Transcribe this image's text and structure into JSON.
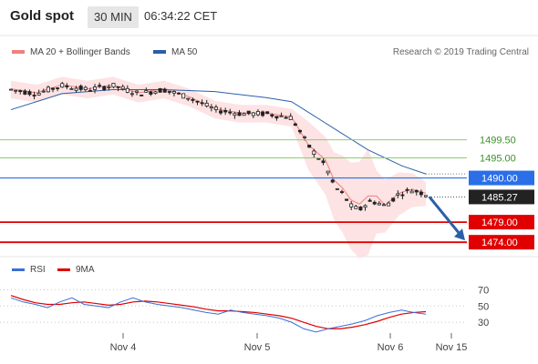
{
  "header": {
    "title": "Gold spot",
    "timeframe": "30 MIN",
    "clock": "06:34:22 CET"
  },
  "legend": {
    "items": [
      {
        "label": "MA 20 + Bollinger Bands",
        "color": "#f08080"
      },
      {
        "label": "MA 50",
        "color": "#2a5fa8"
      }
    ],
    "credit": "Research © 2019 Trading Central"
  },
  "colors": {
    "candle": "#222222",
    "bb_fill": "#fde0e0",
    "ma20": "#f08080",
    "ma50": "#2a5fa8",
    "support": "#e00000",
    "resistance": "#8fce6b",
    "pivot": "#2a6fe8",
    "arrow": "#2a5fa8"
  },
  "chart_data": [
    {
      "type": "line",
      "title": "",
      "xlabel": "",
      "ylabel": "",
      "x_ticks": [
        "Nov 4",
        "Nov 5",
        "Nov 6",
        "Nov 15"
      ],
      "ylim": [
        1472,
        1518
      ],
      "price_series": {
        "name": "Gold spot",
        "points_x": [
          0,
          15,
          30,
          45,
          60,
          75,
          90,
          105,
          120,
          135,
          150,
          165,
          175,
          185,
          190,
          195,
          200,
          205,
          210,
          215,
          220,
          228,
          236,
          244
        ],
        "values": [
          1512,
          1511,
          1513,
          1512,
          1513,
          1511,
          1512,
          1510,
          1507,
          1506,
          1506,
          1505,
          1498,
          1493,
          1488,
          1486,
          1483,
          1482,
          1484,
          1484,
          1483,
          1486,
          1487,
          1486
        ]
      },
      "ma50": {
        "name": "MA 50",
        "points_x": [
          0,
          30,
          60,
          90,
          120,
          150,
          165,
          180,
          195,
          210,
          230,
          244
        ],
        "values": [
          1507,
          1511,
          1512,
          1512,
          1511.5,
          1510,
          1509,
          1505,
          1501,
          1497,
          1493,
          1491
        ]
      },
      "levels": [
        {
          "label": "1499.50",
          "value": 1499.5,
          "kind": "resistance"
        },
        {
          "label": "1495.00",
          "value": 1495.0,
          "kind": "resistance"
        },
        {
          "label": "1490.00",
          "value": 1490.0,
          "kind": "pivot"
        },
        {
          "label": "1485.27",
          "value": 1485.27,
          "kind": "last"
        },
        {
          "label": "1479.00",
          "value": 1479.0,
          "kind": "support"
        },
        {
          "label": "1474.00",
          "value": 1474.0,
          "kind": "support"
        }
      ],
      "projection": {
        "from": 1485.27,
        "to": 1474.0
      }
    },
    {
      "type": "line",
      "title": "",
      "legend": [
        {
          "name": "RSI",
          "color": "#3a6fd8"
        },
        {
          "name": "9MA",
          "color": "#e00000"
        }
      ],
      "y_ticks": [
        70,
        50,
        30
      ],
      "ylim": [
        10,
        85
      ],
      "rsi": [
        60,
        55,
        52,
        48,
        55,
        60,
        52,
        50,
        48,
        55,
        60,
        55,
        52,
        50,
        48,
        45,
        42,
        40,
        45,
        42,
        40,
        38,
        35,
        30,
        22,
        18,
        22,
        25,
        28,
        32,
        38,
        42,
        45,
        42,
        40
      ],
      "ma9": [
        63,
        58,
        54,
        52,
        52,
        54,
        55,
        53,
        51,
        52,
        55,
        56,
        55,
        53,
        51,
        49,
        46,
        44,
        44,
        43,
        42,
        40,
        38,
        35,
        30,
        25,
        22,
        22,
        24,
        27,
        31,
        36,
        40,
        42,
        43
      ]
    }
  ]
}
